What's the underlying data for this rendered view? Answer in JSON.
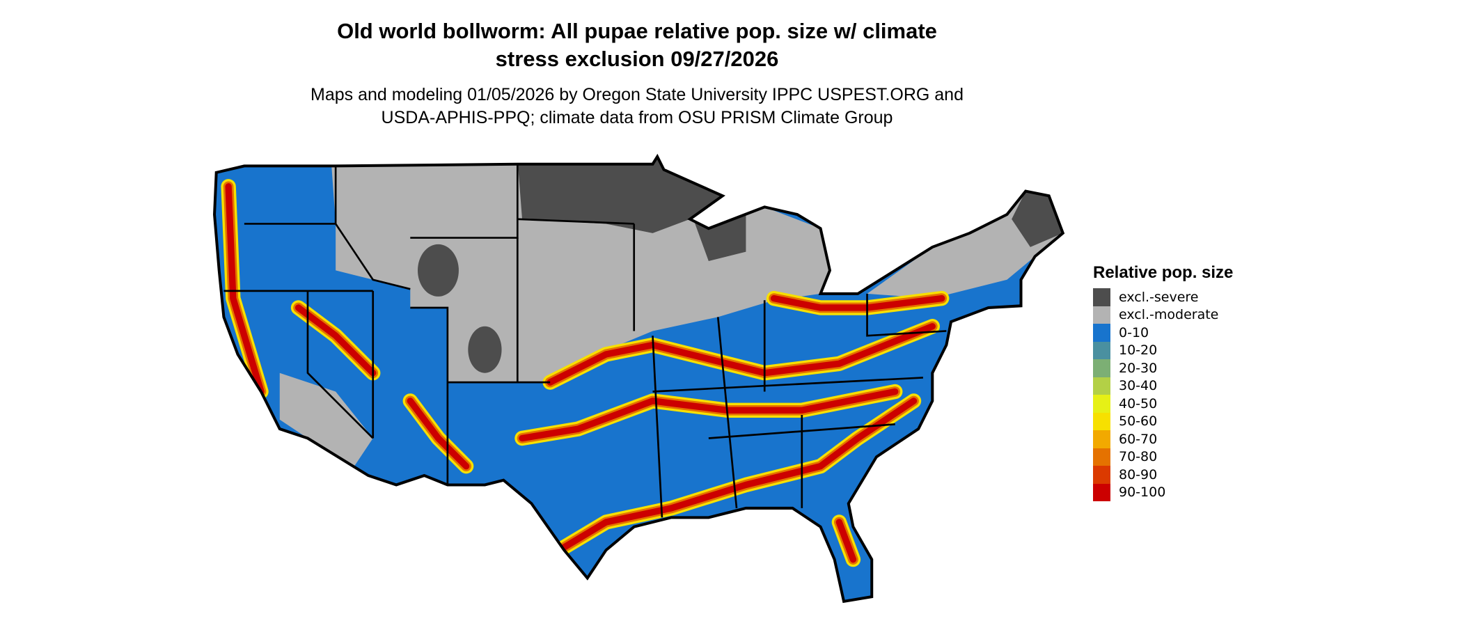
{
  "title_line1": "Old world bollworm: All pupae relative pop. size w/ climate",
  "title_line2": "stress exclusion 09/27/2026",
  "subtitle_line1": "Maps and modeling 01/05/2026 by Oregon State University IPPC USPEST.ORG and",
  "subtitle_line2": "USDA-APHIS-PPQ; climate data from OSU PRISM Climate Group",
  "legend": {
    "title": "Relative pop. size",
    "items": [
      {
        "label": "excl.-severe",
        "color": "#4d4d4d"
      },
      {
        "label": "excl.-moderate",
        "color": "#b3b3b3"
      },
      {
        "label": "0-10",
        "color": "#1874cd"
      },
      {
        "label": "10-20",
        "color": "#4a90a0"
      },
      {
        "label": "20-30",
        "color": "#7caf74"
      },
      {
        "label": "30-40",
        "color": "#b3d046"
      },
      {
        "label": "40-50",
        "color": "#e6f016"
      },
      {
        "label": "50-60",
        "color": "#f7e000"
      },
      {
        "label": "60-70",
        "color": "#f2a900"
      },
      {
        "label": "70-80",
        "color": "#e57200"
      },
      {
        "label": "80-90",
        "color": "#db3a00"
      },
      {
        "label": "90-100",
        "color": "#cc0000"
      }
    ]
  }
}
